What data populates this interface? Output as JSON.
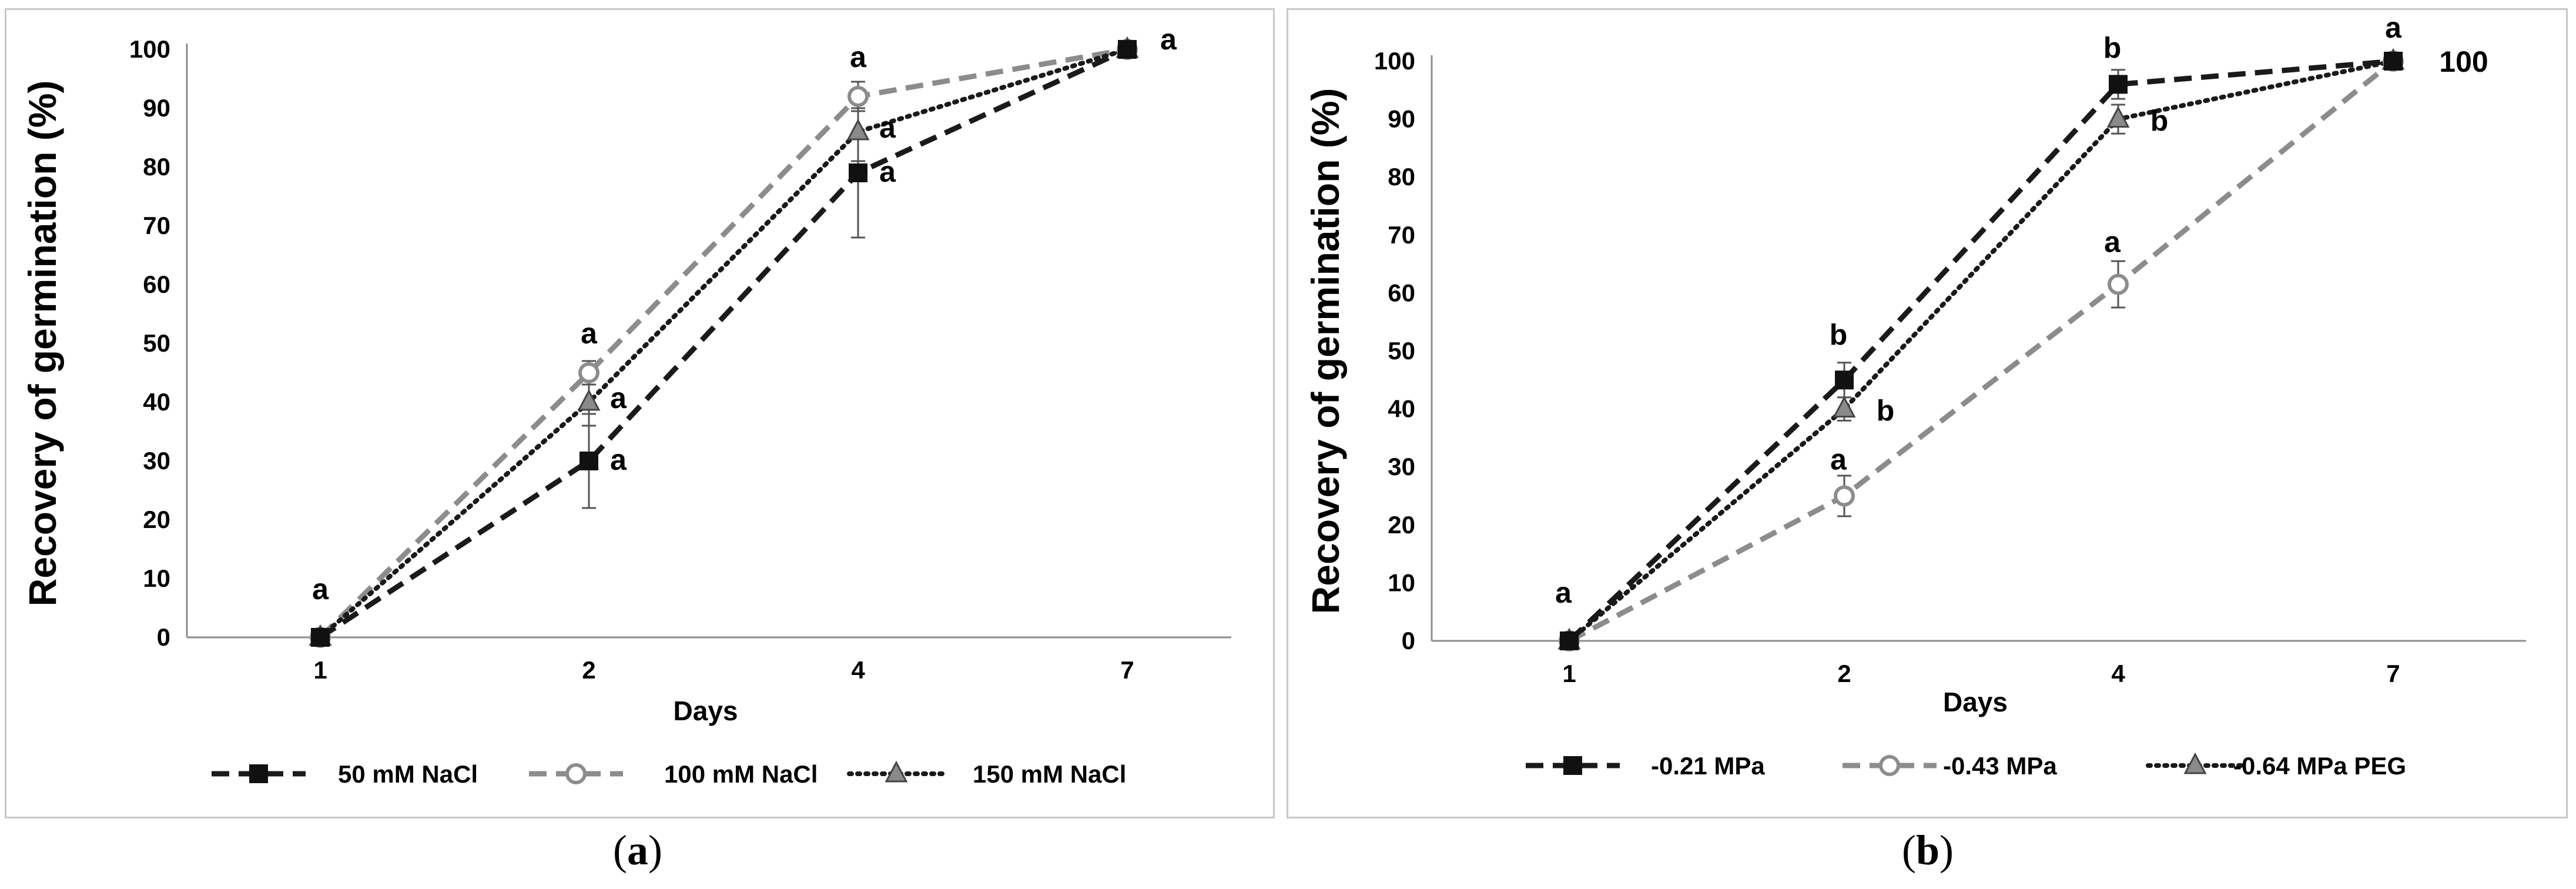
{
  "chart_data": [
    {
      "type": "line",
      "panel": "a",
      "title": "",
      "xlabel": "Days",
      "ylabel": "Recovery of germination (%)",
      "categories": [
        "1",
        "2",
        "4",
        "7"
      ],
      "ylim": [
        0,
        100
      ],
      "yticks": [
        "0",
        "10",
        "20",
        "30",
        "40",
        "50",
        "60",
        "70",
        "80",
        "90",
        "100"
      ],
      "grid": false,
      "legend_position": "bottom",
      "series": [
        {
          "name": "50 mM NaCl",
          "values": [
            0,
            30,
            79,
            100
          ],
          "errors": [
            0,
            8,
            11,
            0
          ],
          "color": "#1a1a1a",
          "dash": "long-dash",
          "marker": "square",
          "letters": [
            "",
            "a",
            "a",
            ""
          ]
        },
        {
          "name": "100 mM NaCl",
          "values": [
            0,
            45,
            92,
            100
          ],
          "errors": [
            0,
            2,
            2.5,
            0
          ],
          "color": "#8c8c8c",
          "dash": "long-dash",
          "marker": "circle",
          "letters": [
            "",
            "a",
            "a",
            ""
          ]
        },
        {
          "name": "150 mM NaCl",
          "values": [
            0,
            40,
            86,
            100
          ],
          "errors": [
            0,
            4,
            5,
            0
          ],
          "color": "#1a1a1a",
          "dash": "dotted",
          "marker": "triangle",
          "letters": [
            "a",
            "a",
            "a",
            "a"
          ]
        }
      ],
      "caption": "a"
    },
    {
      "type": "line",
      "panel": "b",
      "title": "",
      "xlabel": "Days",
      "ylabel": "Recovery of germination (%)",
      "categories": [
        "1",
        "2",
        "4",
        "7"
      ],
      "ylim": [
        0,
        100
      ],
      "yticks": [
        "0",
        "10",
        "20",
        "30",
        "40",
        "50",
        "60",
        "70",
        "80",
        "90",
        "100"
      ],
      "grid": false,
      "legend_position": "bottom",
      "series": [
        {
          "name": "-0.21 MPa",
          "values": [
            0,
            45,
            96,
            100
          ],
          "errors": [
            0,
            3,
            2.5,
            0
          ],
          "color": "#1a1a1a",
          "dash": "long-dash",
          "marker": "square",
          "letters": [
            "",
            "b",
            "b",
            "a"
          ]
        },
        {
          "name": "-0.43 MPa",
          "values": [
            0,
            25,
            61.5,
            100
          ],
          "errors": [
            0,
            3.5,
            4,
            0
          ],
          "color": "#8c8c8c",
          "dash": "long-dash",
          "marker": "circle",
          "letters": [
            "a",
            "a",
            "a",
            ""
          ]
        },
        {
          "name": "-0.64 MPa PEG",
          "values": [
            0,
            40,
            90,
            100
          ],
          "errors": [
            0,
            2,
            2.5,
            0
          ],
          "color": "#1a1a1a",
          "dash": "dotted",
          "marker": "triangle",
          "letters": [
            "",
            "b",
            "b",
            ""
          ]
        }
      ],
      "annotations": [
        "100"
      ],
      "caption": "b"
    }
  ]
}
